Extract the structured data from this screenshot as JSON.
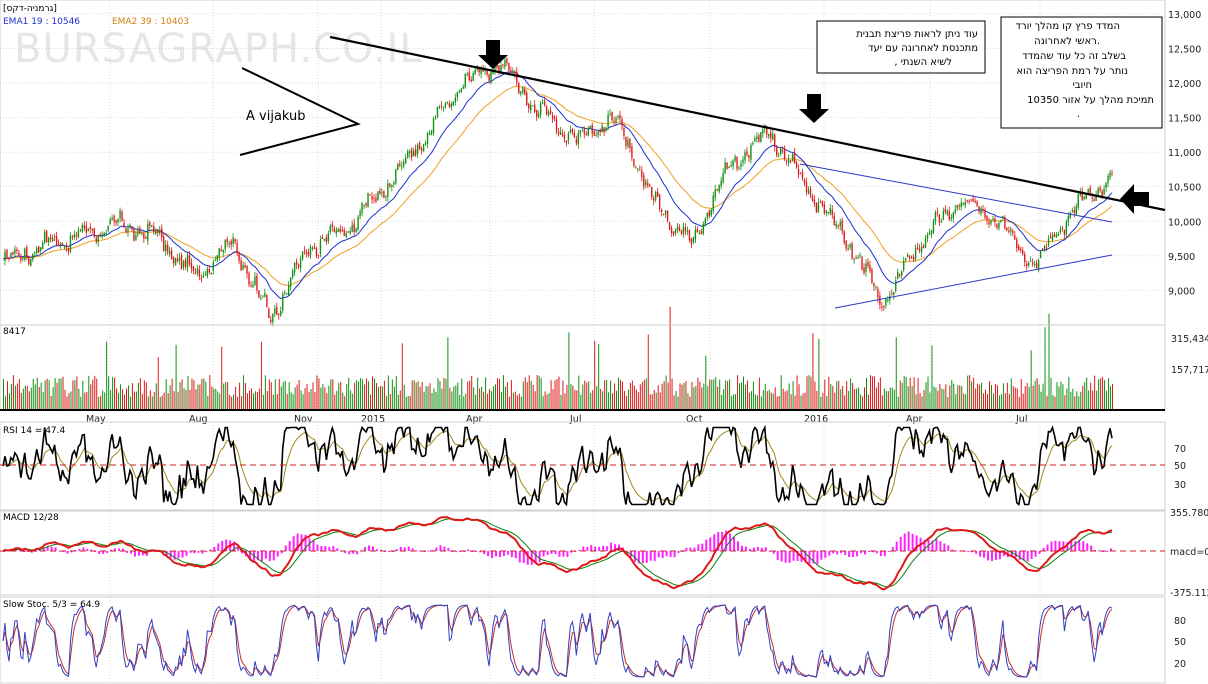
{
  "header": {
    "title": "[גרמניה-דקס]",
    "ema1": "EMA1 19 : 10546",
    "ema2": "EMA2 39 : 10403",
    "watermark": "BURSAGRAPH.CO.IL"
  },
  "annotations": {
    "pattern_label": "A vijakub",
    "note_top": [
      "עוד ניתן לראות פריצת תבנית",
      "מתכנסת לאחרונה עם יעד",
      ", לשיא השנתי"
    ],
    "note_right": [
      "המדד פרץ קו מהלך יורד",
      "ראשי לאחרונה.",
      "בשלב זה כל עוד שהמדד",
      "נותר על רמת הפריצה הוא",
      "חיובי",
      "תמיכת מהלך על אזור 10350",
      "."
    ]
  },
  "colors": {
    "up": "#109010",
    "down": "#e01818",
    "ema1": "#1c2fd0",
    "ema2": "#f0a020",
    "trend": "#000000",
    "channel": "#2838c8",
    "rsi": "#000000",
    "rsi_signal": "#a08a20",
    "macd": "#e01818",
    "macd_signal": "#108010",
    "hist": "#ff22ff",
    "stoch_k": "#3040c0",
    "stoch_d": "#c03030",
    "ref_red": "#cc2222",
    "grid": "#c8c8c8"
  },
  "chart_data": [
    {
      "type": "candlestick",
      "title": "[גרמניה-דקס]",
      "x_tick_labels": [
        "May",
        "Aug",
        "Nov",
        "2015",
        "Apr",
        "Jul",
        "Oct",
        "2016",
        "Apr",
        "Jul"
      ],
      "y_tick_labels": [
        "13,000",
        "12,500",
        "12,000",
        "11,500",
        "11,000",
        "10,500",
        "10,000",
        "9,500",
        "9,000"
      ],
      "ylim": [
        8500,
        13200
      ],
      "series": [
        {
          "name": "EMA1 19",
          "last_value": 10546
        },
        {
          "name": "EMA2 39",
          "last_value": 10403
        }
      ],
      "approx_path": [
        [
          "2014-03",
          9400
        ],
        [
          "2014-04",
          9650
        ],
        [
          "2014-05",
          9800
        ],
        [
          "2014-06",
          9950
        ],
        [
          "2014-07",
          9800
        ],
        [
          "2014-08",
          9200
        ],
        [
          "2014-09",
          9700
        ],
        [
          "2014-10",
          8600
        ],
        [
          "2014-11",
          9600
        ],
        [
          "2014-12",
          9900
        ],
        [
          "2015-01",
          10500
        ],
        [
          "2015-02",
          11200
        ],
        [
          "2015-03",
          12000
        ],
        [
          "2015-04",
          12300
        ],
        [
          "2015-05",
          11600
        ],
        [
          "2015-06",
          11200
        ],
        [
          "2015-07",
          11500
        ],
        [
          "2015-08",
          10300
        ],
        [
          "2015-09",
          9700
        ],
        [
          "2015-10",
          10800
        ],
        [
          "2015-11",
          11300
        ],
        [
          "2015-12",
          10500
        ],
        [
          "2016-01",
          9800
        ],
        [
          "2016-02",
          8800
        ],
        [
          "2016-03",
          9700
        ],
        [
          "2016-04",
          10300
        ],
        [
          "2016-05",
          10000
        ],
        [
          "2016-06",
          9400
        ],
        [
          "2016-07",
          10200
        ],
        [
          "2016-08",
          10600
        ]
      ]
    },
    {
      "type": "bar",
      "title": "8417",
      "y_tick_labels": [
        "315,434",
        "157,717"
      ]
    },
    {
      "type": "line",
      "title": "RSI 14 = 47.4",
      "y_tick_labels": [
        "70",
        "50",
        "30"
      ],
      "ylim": [
        10,
        90
      ]
    },
    {
      "type": "line",
      "title": "MACD 12/28",
      "y_tick_labels": [
        "355.780",
        "macd=0",
        "-375.112"
      ]
    },
    {
      "type": "line",
      "title": "Slow Stoc. 5/3 = 64.9",
      "y_tick_labels": [
        "80",
        "50",
        "20"
      ],
      "ylim": [
        0,
        100
      ]
    }
  ]
}
